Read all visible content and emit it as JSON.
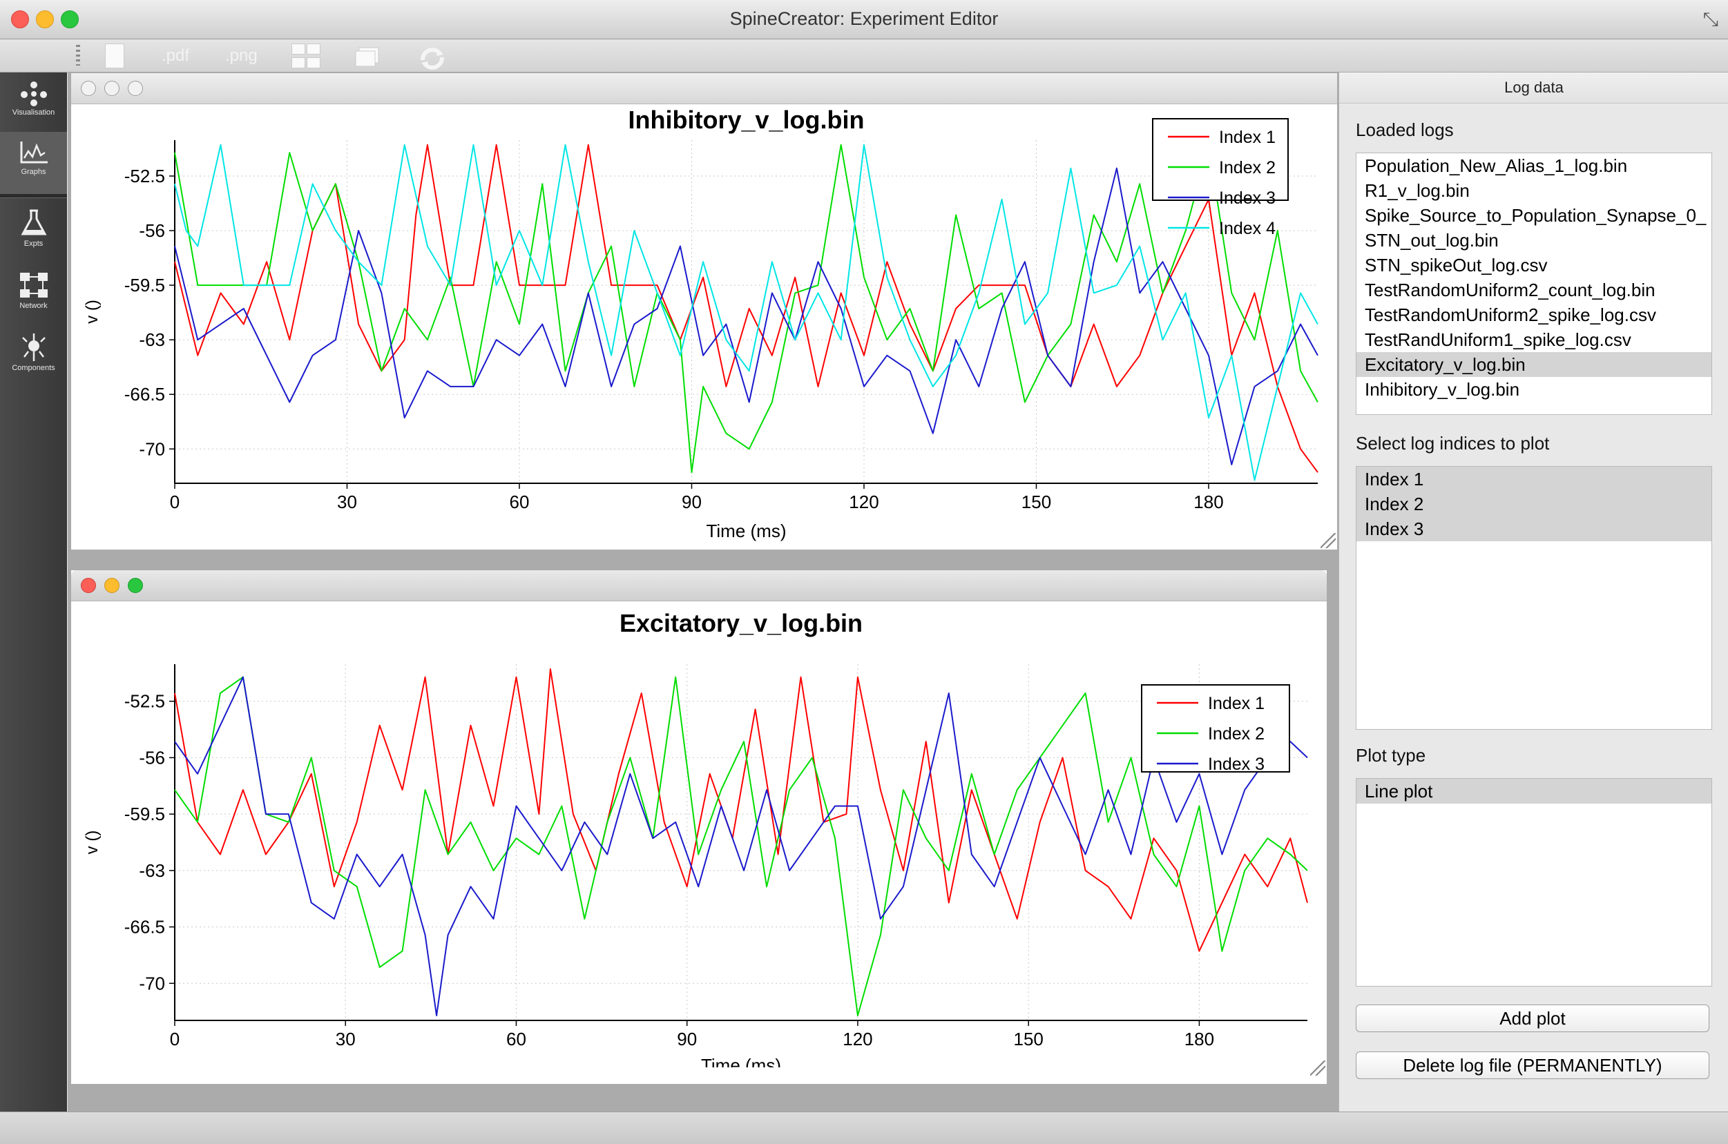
{
  "window": {
    "title": "SpineCreator: Experiment Editor"
  },
  "toolbar": {
    "pdf_label": ".pdf",
    "png_label": ".png"
  },
  "sidebar": {
    "items": [
      {
        "label": "Visualisation",
        "icon": "visualisation-icon",
        "active": false
      },
      {
        "label": "Graphs",
        "icon": "graphs-icon",
        "active": true
      },
      {
        "label": "Expts",
        "icon": "flask-icon",
        "active": false
      },
      {
        "label": "Network",
        "icon": "network-icon",
        "active": false
      },
      {
        "label": "Components",
        "icon": "components-icon",
        "active": false
      }
    ]
  },
  "log_panel": {
    "header": "Log data",
    "loaded_logs_label": "Loaded logs",
    "loaded_logs": [
      "Population_New_Alias_1_log.bin",
      "R1_v_log.bin",
      "Spike_Source_to_Population_Synapse_0_",
      "STN_out_log.bin",
      "STN_spikeOut_log.csv",
      "TestRandomUniform2_count_log.bin",
      "TestRandomUniform2_spike_log.csv",
      "TestRandUniform1_spike_log.csv",
      "Excitatory_v_log.bin",
      "Inhibitory_v_log.bin"
    ],
    "selected_log": "Excitatory_v_log.bin",
    "indices_label": "Select log indices to plot",
    "indices": [
      "Index 1",
      "Index 2",
      "Index 3"
    ],
    "plot_type_label": "Plot type",
    "plot_types": [
      "Line plot"
    ],
    "add_plot_button": "Add plot",
    "delete_button": "Delete log file (PERMANENTLY)"
  },
  "chart_data": [
    {
      "type": "line",
      "title": "Inhibitory_v_log.bin",
      "xlabel": "Time (ms)",
      "ylabel": "v ()",
      "xlim": [
        0,
        199
      ],
      "ylim": [
        -72.2,
        -50.2
      ],
      "xticks": [
        0,
        30,
        60,
        90,
        120,
        150,
        180
      ],
      "yticks": [
        -52.5,
        -56,
        -59.5,
        -63,
        -66.5,
        -70
      ],
      "grid": true,
      "legend_position": "top-right",
      "series": [
        {
          "name": "Index 1",
          "color": "#ff0000",
          "x": [
            0,
            4,
            8,
            12,
            16,
            20,
            24,
            28,
            32,
            36,
            40,
            42,
            44,
            48,
            52,
            56,
            60,
            64,
            68,
            72,
            76,
            80,
            84,
            88,
            92,
            96,
            100,
            104,
            108,
            112,
            116,
            120,
            124,
            128,
            132,
            136,
            140,
            144,
            148,
            152,
            156,
            160,
            164,
            168,
            172,
            176,
            180,
            184,
            188,
            192,
            196,
            199
          ],
          "y": [
            -58,
            -64,
            -60,
            -62,
            -58,
            -63,
            -56,
            -53,
            -62,
            -65,
            -63,
            -55,
            -50.5,
            -59.5,
            -59.5,
            -50.5,
            -59.5,
            -59.5,
            -59.5,
            -50.5,
            -59.5,
            -59.5,
            -59.5,
            -63,
            -59,
            -66,
            -61,
            -64,
            -59,
            -66,
            -60,
            -64,
            -58,
            -62,
            -65,
            -61,
            -59.5,
            -59.5,
            -59.5,
            -64,
            -66,
            -62,
            -66,
            -64,
            -60,
            -57,
            -54,
            -64,
            -60,
            -66,
            -70,
            -71.5
          ]
        },
        {
          "name": "Index 2",
          "color": "#00dd00",
          "x": [
            0,
            4,
            8,
            12,
            16,
            20,
            24,
            28,
            32,
            36,
            40,
            44,
            48,
            52,
            56,
            60,
            64,
            68,
            72,
            76,
            80,
            84,
            88,
            90,
            92,
            96,
            100,
            104,
            108,
            112,
            116,
            120,
            124,
            128,
            132,
            136,
            140,
            144,
            148,
            152,
            156,
            160,
            164,
            168,
            172,
            176,
            180,
            184,
            188,
            192,
            196,
            199
          ],
          "y": [
            -51,
            -59.5,
            -59.5,
            -59.5,
            -59.5,
            -51,
            -56,
            -53,
            -58,
            -65,
            -61,
            -63,
            -59,
            -66,
            -58,
            -62,
            -53,
            -65,
            -60,
            -57,
            -66,
            -60,
            -63,
            -71.5,
            -66,
            -69,
            -70,
            -67,
            -60,
            -59.5,
            -50.5,
            -59,
            -63,
            -61,
            -65,
            -55,
            -61,
            -60,
            -67,
            -64,
            -62,
            -55,
            -58,
            -53,
            -60,
            -56,
            -50.5,
            -60,
            -63,
            -56,
            -65,
            -67
          ]
        },
        {
          "name": "Index 3",
          "color": "#1a1acc",
          "x": [
            0,
            4,
            8,
            12,
            16,
            20,
            24,
            28,
            32,
            36,
            40,
            44,
            48,
            52,
            56,
            60,
            64,
            68,
            72,
            76,
            80,
            84,
            88,
            92,
            96,
            100,
            104,
            108,
            112,
            116,
            120,
            124,
            128,
            132,
            136,
            140,
            144,
            148,
            152,
            156,
            160,
            164,
            168,
            172,
            176,
            180,
            184,
            188,
            192,
            196,
            199
          ],
          "y": [
            -57,
            -63,
            -62,
            -61,
            -64,
            -67,
            -64,
            -63,
            -56,
            -60,
            -68,
            -65,
            -66,
            -66,
            -63,
            -64,
            -62,
            -66,
            -60,
            -66,
            -62,
            -61,
            -57,
            -64,
            -62,
            -67,
            -60,
            -63,
            -58,
            -61,
            -66,
            -64,
            -65,
            -69,
            -63,
            -66,
            -61,
            -58,
            -64,
            -66,
            -58,
            -52,
            -60,
            -58,
            -61,
            -64,
            -71,
            -66,
            -65,
            -62,
            -64
          ]
        },
        {
          "name": "Index 4",
          "color": "#00e5e5",
          "x": [
            0,
            2,
            4,
            8,
            12,
            16,
            20,
            24,
            28,
            32,
            36,
            40,
            44,
            48,
            52,
            56,
            60,
            64,
            68,
            72,
            76,
            80,
            84,
            88,
            92,
            96,
            100,
            104,
            108,
            112,
            116,
            120,
            124,
            128,
            132,
            136,
            140,
            144,
            148,
            152,
            156,
            160,
            164,
            168,
            172,
            176,
            180,
            184,
            188,
            192,
            196,
            199
          ],
          "y": [
            -53,
            -56,
            -57,
            -50.5,
            -59.5,
            -59.5,
            -59.5,
            -53,
            -56,
            -58,
            -59.5,
            -50.5,
            -57,
            -59.5,
            -50.5,
            -59.5,
            -56,
            -59.5,
            -50.5,
            -58,
            -64,
            -56,
            -60,
            -64,
            -58,
            -63,
            -65,
            -58,
            -63,
            -60,
            -63,
            -50.5,
            -59,
            -63,
            -66,
            -64,
            -60,
            -54,
            -62,
            -60,
            -52,
            -60,
            -59.5,
            -57,
            -63,
            -60,
            -68,
            -64,
            -72,
            -66,
            -60,
            -62
          ]
        }
      ]
    },
    {
      "type": "line",
      "title": "Excitatory_v_log.bin",
      "xlabel": "Time (ms)",
      "ylabel": "v ()",
      "xlim": [
        0,
        199
      ],
      "ylim": [
        -72.3,
        -50.2
      ],
      "xticks": [
        0,
        30,
        60,
        90,
        120,
        150,
        180
      ],
      "yticks": [
        -52.5,
        -56,
        -59.5,
        -63,
        -66.5,
        -70
      ],
      "grid": true,
      "legend_position": "top-right",
      "series": [
        {
          "name": "Index 1",
          "color": "#ff0000",
          "x": [
            0,
            4,
            8,
            12,
            16,
            20,
            24,
            28,
            32,
            36,
            40,
            44,
            48,
            52,
            56,
            60,
            64,
            66,
            70,
            74,
            78,
            82,
            86,
            90,
            94,
            98,
            102,
            106,
            110,
            114,
            118,
            120,
            124,
            128,
            132,
            136,
            140,
            144,
            148,
            152,
            156,
            160,
            164,
            168,
            172,
            176,
            180,
            184,
            188,
            192,
            196,
            199
          ],
          "y": [
            -52,
            -60,
            -62,
            -58,
            -62,
            -60,
            -57,
            -64,
            -60,
            -54,
            -58,
            -51,
            -62,
            -54,
            -59,
            -51,
            -59.5,
            -50.5,
            -59.5,
            -63,
            -57,
            -52,
            -60,
            -64,
            -57,
            -61,
            -53,
            -62,
            -51,
            -60,
            -59.5,
            -51,
            -58,
            -63,
            -55,
            -65,
            -58,
            -62,
            -66,
            -60,
            -56,
            -63,
            -64,
            -66,
            -61,
            -63,
            -68,
            -65,
            -62,
            -64,
            -61,
            -65
          ]
        },
        {
          "name": "Index 2",
          "color": "#00dd00",
          "x": [
            0,
            4,
            8,
            12,
            16,
            20,
            24,
            28,
            32,
            36,
            40,
            44,
            48,
            52,
            56,
            60,
            64,
            68,
            72,
            76,
            80,
            84,
            88,
            92,
            96,
            100,
            104,
            108,
            112,
            116,
            120,
            124,
            128,
            132,
            136,
            140,
            144,
            148,
            152,
            156,
            160,
            164,
            168,
            172,
            176,
            180,
            184,
            188,
            192,
            196,
            199
          ],
          "y": [
            -58,
            -60,
            -52,
            -51,
            -59.5,
            -60,
            -56,
            -63,
            -64,
            -69,
            -68,
            -58,
            -62,
            -60,
            -63,
            -61,
            -62,
            -59,
            -66,
            -60,
            -56,
            -61,
            -51,
            -62,
            -58,
            -55,
            -64,
            -58,
            -56,
            -61,
            -72,
            -67,
            -58,
            -61,
            -63,
            -57,
            -62,
            -58,
            -56,
            -54,
            -52,
            -60,
            -56,
            -62,
            -64,
            -59,
            -68,
            -63,
            -61,
            -62,
            -63
          ]
        },
        {
          "name": "Index 3",
          "color": "#1a1acc",
          "x": [
            0,
            4,
            8,
            12,
            16,
            20,
            24,
            28,
            32,
            36,
            40,
            44,
            46,
            48,
            52,
            56,
            60,
            64,
            68,
            72,
            76,
            80,
            84,
            88,
            92,
            96,
            100,
            104,
            108,
            112,
            116,
            120,
            124,
            128,
            132,
            136,
            140,
            144,
            148,
            152,
            156,
            160,
            164,
            168,
            172,
            176,
            180,
            184,
            188,
            192,
            196,
            199
          ],
          "y": [
            -55,
            -57,
            -54,
            -51,
            -59.5,
            -59.5,
            -65,
            -66,
            -62,
            -64,
            -62,
            -67,
            -72,
            -67,
            -64,
            -66,
            -59,
            -61,
            -63,
            -60,
            -62,
            -57,
            -61,
            -60,
            -64,
            -59,
            -63,
            -58,
            -63,
            -61,
            -59,
            -59,
            -66,
            -64,
            -58,
            -52,
            -62,
            -64,
            -60,
            -56,
            -59,
            -62,
            -58,
            -62,
            -56,
            -60,
            -57,
            -62,
            -58,
            -56,
            -55,
            -56
          ]
        }
      ]
    }
  ]
}
